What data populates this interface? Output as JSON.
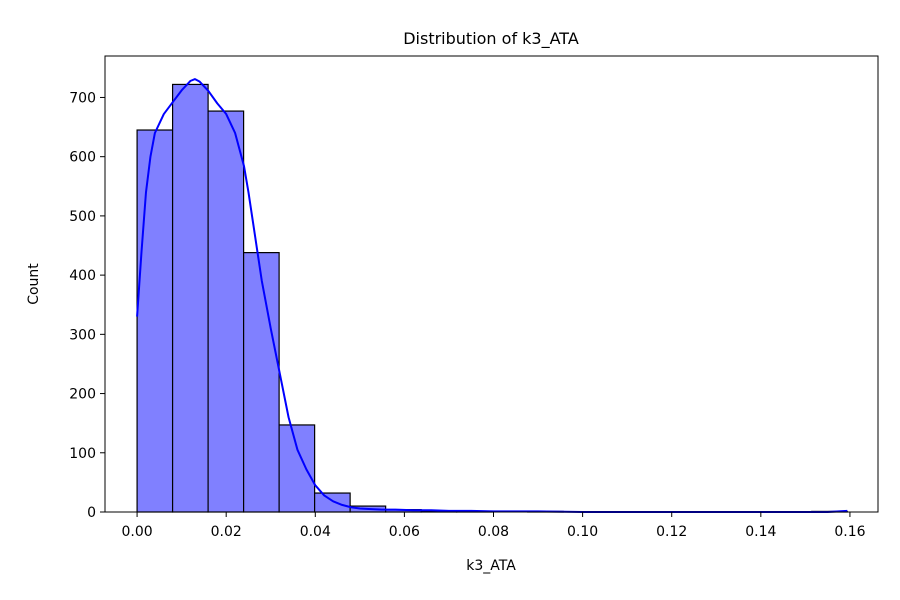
{
  "chart_data": {
    "type": "bar",
    "title": "Distribution of k3_ATA",
    "xlabel": "k3_ATA",
    "ylabel": "Count",
    "xlim": [
      -0.0072,
      0.1663
    ],
    "ylim": [
      0,
      770
    ],
    "xticks": [
      0.0,
      0.02,
      0.04,
      0.06,
      0.08,
      0.1,
      0.12,
      0.14,
      0.16
    ],
    "xtick_labels": [
      "0.00",
      "0.02",
      "0.04",
      "0.06",
      "0.08",
      "0.10",
      "0.12",
      "0.14",
      "0.16"
    ],
    "yticks": [
      0,
      100,
      200,
      300,
      400,
      500,
      600,
      700
    ],
    "ytick_labels": [
      "0",
      "100",
      "200",
      "300",
      "400",
      "500",
      "600",
      "700"
    ],
    "bin_edges": [
      0.0,
      0.00797,
      0.01594,
      0.02391,
      0.03188,
      0.03985,
      0.04782,
      0.05579,
      0.06376,
      0.07173,
      0.0797,
      0.08767,
      0.09564,
      0.10361,
      0.11158,
      0.11955,
      0.12752,
      0.13549,
      0.14346,
      0.15143,
      0.1594
    ],
    "counts": [
      645,
      722,
      677,
      438,
      147,
      32,
      10,
      4,
      2,
      1,
      0,
      1,
      0,
      0,
      0,
      0,
      0,
      0,
      0,
      1
    ],
    "kde": {
      "x": [
        0.0,
        0.001,
        0.002,
        0.003,
        0.004,
        0.006,
        0.008,
        0.01,
        0.012,
        0.013,
        0.014,
        0.016,
        0.018,
        0.02,
        0.022,
        0.024,
        0.025,
        0.026,
        0.027,
        0.028,
        0.03,
        0.032,
        0.034,
        0.036,
        0.038,
        0.04,
        0.042,
        0.044,
        0.046,
        0.048,
        0.05,
        0.052,
        0.055,
        0.058,
        0.062,
        0.066,
        0.07,
        0.075,
        0.08,
        0.09,
        0.1,
        0.12,
        0.14,
        0.155,
        0.1594
      ],
      "y": [
        330,
        440,
        540,
        600,
        640,
        672,
        692,
        712,
        728,
        731,
        727,
        711,
        690,
        672,
        640,
        584,
        540,
        490,
        440,
        390,
        310,
        235,
        160,
        105,
        72,
        45,
        28,
        18,
        12,
        8,
        6,
        5,
        4,
        4,
        3,
        3,
        2,
        2,
        1,
        1,
        0,
        0,
        0,
        0,
        2
      ]
    },
    "colors": {
      "bar_fill": "#8080ff",
      "bar_edge": "#000000",
      "kde_line": "#0000ff"
    }
  }
}
